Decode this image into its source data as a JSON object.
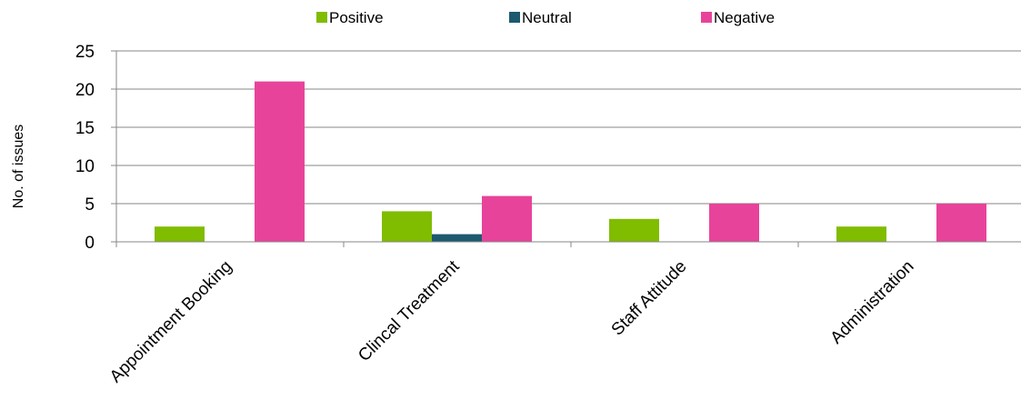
{
  "chart_data": {
    "type": "bar",
    "title": "",
    "xlabel": "",
    "ylabel": "No. of issues",
    "categories": [
      "Appointment Booking",
      "Clincal Treatment",
      "Staff Attitude",
      "Administration"
    ],
    "series": [
      {
        "name": "Positive",
        "color": "#80bc00",
        "values": [
          2,
          4,
          3,
          2
        ]
      },
      {
        "name": "Neutral",
        "color": "#1c5a6e",
        "values": [
          0,
          1,
          0,
          0
        ]
      },
      {
        "name": "Negative",
        "color": "#e8439a",
        "values": [
          21,
          6,
          5,
          5
        ]
      }
    ],
    "ylim": [
      0,
      25
    ],
    "yticks": [
      "0",
      "5",
      "10",
      "15",
      "20",
      "25"
    ],
    "grid": true,
    "legend_position": "top"
  }
}
